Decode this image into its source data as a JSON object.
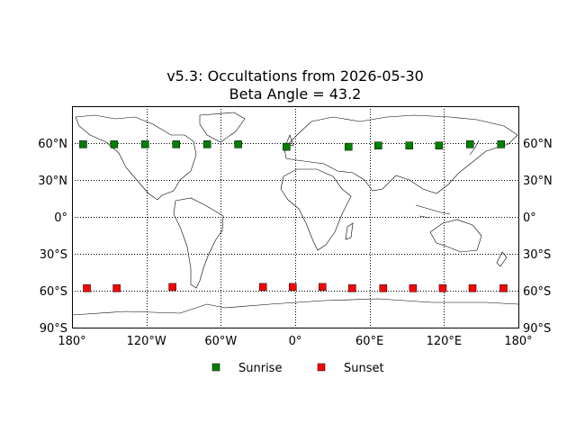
{
  "chart_data": {
    "type": "scatter",
    "title": "v5.3: Occultations from 2026-05-30",
    "subtitle": "Beta Angle = 43.2",
    "xlabel": "",
    "ylabel": "",
    "xlim": [
      -180,
      180
    ],
    "ylim": [
      -90,
      90
    ],
    "grid": true,
    "map_projection": "equirectangular world coastlines",
    "x_ticks": [
      {
        "value": -180,
        "label": "180°"
      },
      {
        "value": -120,
        "label": "120°W"
      },
      {
        "value": -60,
        "label": "60°W"
      },
      {
        "value": 0,
        "label": "0°"
      },
      {
        "value": 60,
        "label": "60°E"
      },
      {
        "value": 120,
        "label": "120°E"
      },
      {
        "value": 180,
        "label": "180°"
      }
    ],
    "y_ticks": [
      {
        "value": 60,
        "label": "60°N"
      },
      {
        "value": 30,
        "label": "30°N"
      },
      {
        "value": 0,
        "label": "0°"
      },
      {
        "value": -30,
        "label": "30°S"
      },
      {
        "value": -60,
        "label": "60°S"
      },
      {
        "value": -90,
        "label": "90°S"
      }
    ],
    "legend_position": "bottom-center",
    "series": [
      {
        "name": "Sunrise",
        "color": "#008000",
        "marker": "square",
        "x": [
          -171,
          -146,
          -121,
          -96,
          -71,
          -46,
          -7,
          43,
          67,
          92,
          116,
          141,
          166
        ],
        "y": [
          59,
          59,
          59,
          59,
          59,
          59,
          57,
          57,
          58,
          58,
          58,
          59,
          59
        ]
      },
      {
        "name": "Sunset",
        "color": "#ff0000",
        "marker": "square",
        "x": [
          -168,
          -144,
          -99,
          -26,
          -2,
          22,
          46,
          71,
          95,
          119,
          143,
          168
        ],
        "y": [
          -58,
          -58,
          -57,
          -57,
          -57,
          -57,
          -58,
          -58,
          -58,
          -58,
          -58,
          -58
        ]
      }
    ]
  }
}
